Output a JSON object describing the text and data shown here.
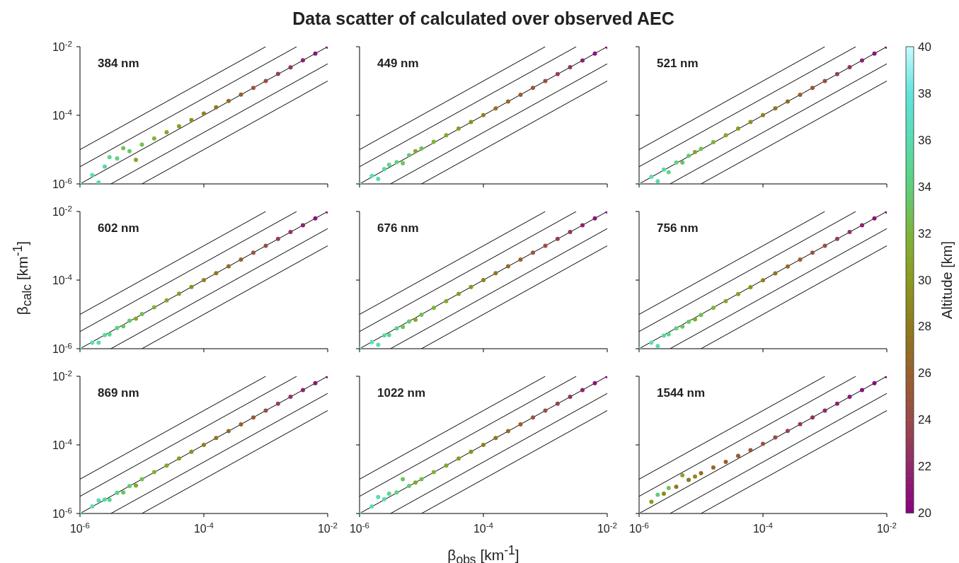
{
  "chart_data": [
    {
      "type": "scatter",
      "log": "xy",
      "annotations": [
        "384 nm"
      ],
      "xlim": [
        1e-06,
        0.01
      ],
      "ylim": [
        1e-06,
        0.01
      ],
      "xticks": [
        {
          "value": 1e-06,
          "label": null
        },
        {
          "value": 0.0001,
          "label": null
        },
        {
          "value": 0.01,
          "label": null
        }
      ],
      "yticks": [
        {
          "value": 1e-06,
          "label": "10$^{-6}$"
        },
        {
          "value": 0.0001,
          "label": "10$^{-4}$"
        },
        {
          "value": 0.01,
          "label": "10$^{-2}$"
        }
      ],
      "tick_labels": "y",
      "x": [
        1e-06,
        1.58e-06,
        2e-06,
        2.51e-06,
        3e-06,
        3.98e-06,
        5e-06,
        6.31e-06,
        8e-06,
        1e-05,
        1.58e-05,
        2.51e-05,
        3.98e-05,
        6.31e-05,
        0.0001,
        0.000158,
        0.000251,
        0.000398,
        0.000631,
        0.001,
        0.00158,
        0.00251,
        0.00398,
        0.00631,
        0.01
      ],
      "series": [
        {
          "type": "scatter",
          "values": [
            1e-06,
            1.8e-06,
            1.1e-06,
            3.2e-06,
            6e-06,
            5.5e-06,
            1.1e-05,
            9e-06,
            5e-06,
            1.4e-05,
            2.1e-05,
            3.2e-05,
            4.8e-05,
            7.3e-05,
            0.000112,
            0.00017,
            0.00026,
            0.0004,
            0.00063,
            0.001,
            0.0016,
            0.0025,
            0.004,
            0.0063,
            0.01
          ],
          "colors": [
            "#5ce0c6",
            "#59ddb4",
            "#58dcb0",
            "#5ad89d",
            "#5cd695",
            "#5dd288",
            "#6fc25a",
            "#65ca6d",
            "#85a72c",
            "#72bf54",
            "#7fb339",
            "#84a82d",
            "#8b9d21",
            "#8d901b",
            "#8e821d",
            "#91761f",
            "#946a27",
            "#98602e",
            "#99563c",
            "#9a4d44",
            "#964052",
            "#923460",
            "#8d246e",
            "#8c1376",
            "#8a0080"
          ]
        },
        {
          "type": "line",
          "color": "#000000",
          "x": [
            1e-06,
            0.001
          ],
          "values": [
            1e-05,
            0.01
          ]
        },
        {
          "type": "line",
          "color": "#000000",
          "x": [
            1e-06,
            0.00316
          ],
          "values": [
            3.16e-06,
            0.01
          ]
        },
        {
          "type": "line",
          "color": "#000000",
          "x": [
            1e-06,
            0.01
          ],
          "values": [
            1e-06,
            0.01
          ]
        },
        {
          "type": "line",
          "color": "#000000",
          "x": [
            3.16e-06,
            0.01
          ],
          "values": [
            1e-06,
            0.00316
          ]
        },
        {
          "type": "line",
          "color": "#000000",
          "x": [
            1e-05,
            0.01
          ],
          "values": [
            1e-06,
            0.001
          ]
        }
      ]
    },
    {
      "type": "scatter",
      "log": "xy",
      "title": "Data scatter of calculated over observed AEC",
      "annotations": [
        "449 nm"
      ],
      "xlim": [
        1e-06,
        0.01
      ],
      "ylim": [
        1e-06,
        0.01
      ],
      "xticks": [
        {
          "value": 1e-06,
          "label": null
        },
        {
          "value": 0.0001,
          "label": null
        },
        {
          "value": 0.01,
          "label": null
        }
      ],
      "yticks": [
        {
          "value": 1e-06,
          "label": null
        },
        {
          "value": 0.0001,
          "label": null
        },
        {
          "value": 0.01,
          "label": null
        }
      ],
      "tick_labels": false,
      "x": [
        1e-06,
        1.58e-06,
        2e-06,
        2.51e-06,
        3e-06,
        3.98e-06,
        5e-06,
        6.31e-06,
        8e-06,
        1e-05,
        1.58e-05,
        2.51e-05,
        3.98e-05,
        6.31e-05,
        0.0001,
        0.000158,
        0.000251,
        0.000398,
        0.000631,
        0.001,
        0.00158,
        0.00251,
        0.00398,
        0.00631,
        0.01
      ],
      "series": [
        {
          "type": "scatter",
          "values": [
            1e-06,
            1.7e-06,
            1.4e-06,
            2.7e-06,
            3.6e-06,
            4.3e-06,
            4e-06,
            6.8e-06,
            9e-06,
            1.07e-05,
            1.68e-05,
            2.6e-05,
            4.1e-05,
            6.4e-05,
            0.000101,
            0.000159,
            0.000252,
            0.000398,
            0.000631,
            0.001,
            0.00158,
            0.00251,
            0.00398,
            0.00631,
            0.01
          ],
          "colors": [
            "#5ce0c6",
            "#59ddb4",
            "#58dcb0",
            "#5ad89d",
            "#5cd695",
            "#5dd288",
            "#6fc25a",
            "#65ca6d",
            "#85a72c",
            "#72bf54",
            "#7fb339",
            "#84a82d",
            "#8b9d21",
            "#8d901b",
            "#8e821d",
            "#91761f",
            "#946a27",
            "#98602e",
            "#99563c",
            "#9a4d44",
            "#964052",
            "#923460",
            "#8d246e",
            "#8c1376",
            "#8a0080"
          ]
        },
        {
          "type": "line",
          "color": "#000000",
          "x": [
            1e-06,
            0.001
          ],
          "values": [
            1e-05,
            0.01
          ]
        },
        {
          "type": "line",
          "color": "#000000",
          "x": [
            1e-06,
            0.00316
          ],
          "values": [
            3.16e-06,
            0.01
          ]
        },
        {
          "type": "line",
          "color": "#000000",
          "x": [
            1e-06,
            0.01
          ],
          "values": [
            1e-06,
            0.01
          ]
        },
        {
          "type": "line",
          "color": "#000000",
          "x": [
            3.16e-06,
            0.01
          ],
          "values": [
            1e-06,
            0.00316
          ]
        },
        {
          "type": "line",
          "color": "#000000",
          "x": [
            1e-05,
            0.01
          ],
          "values": [
            1e-06,
            0.001
          ]
        }
      ]
    },
    {
      "type": "scatter",
      "log": "xy",
      "annotations": [
        "521 nm"
      ],
      "xlim": [
        1e-06,
        0.01
      ],
      "ylim": [
        1e-06,
        0.01
      ],
      "xticks": [
        {
          "value": 1e-06,
          "label": null
        },
        {
          "value": 0.0001,
          "label": null
        },
        {
          "value": 0.01,
          "label": null
        }
      ],
      "yticks": [
        {
          "value": 1e-06,
          "label": null
        },
        {
          "value": 0.0001,
          "label": null
        },
        {
          "value": 0.01,
          "label": null
        }
      ],
      "tick_labels": false,
      "x": [
        1e-06,
        1.58e-06,
        2e-06,
        2.51e-06,
        3e-06,
        3.98e-06,
        5e-06,
        6.31e-06,
        8e-06,
        1e-05,
        1.58e-05,
        2.51e-05,
        3.98e-05,
        6.31e-05,
        0.0001,
        0.000158,
        0.000251,
        0.000398,
        0.000631,
        0.001,
        0.00158,
        0.00251,
        0.00398,
        0.00631,
        0.01
      ],
      "series": [
        {
          "type": "scatter",
          "values": [
            1e-06,
            1.6e-06,
            1.2e-06,
            2.6e-06,
            2.2e-06,
            4.2e-06,
            4.2e-06,
            6.6e-06,
            8.5e-06,
            1.05e-05,
            1.65e-05,
            2.6e-05,
            4.1e-05,
            6.4e-05,
            0.000101,
            0.000158,
            0.000251,
            0.000398,
            0.000631,
            0.001,
            0.00158,
            0.00251,
            0.00398,
            0.00631,
            0.01
          ],
          "colors": [
            "#5ce0c6",
            "#59ddb4",
            "#58dcb0",
            "#5ad89d",
            "#5cd695",
            "#5dd288",
            "#6fc25a",
            "#65ca6d",
            "#85a72c",
            "#72bf54",
            "#7fb339",
            "#84a82d",
            "#8b9d21",
            "#8d901b",
            "#8e821d",
            "#91761f",
            "#946a27",
            "#98602e",
            "#99563c",
            "#9a4d44",
            "#964052",
            "#923460",
            "#8d246e",
            "#8c1376",
            "#8a0080"
          ]
        },
        {
          "type": "line",
          "color": "#000000",
          "x": [
            1e-06,
            0.001
          ],
          "values": [
            1e-05,
            0.01
          ]
        },
        {
          "type": "line",
          "color": "#000000",
          "x": [
            1e-06,
            0.00316
          ],
          "values": [
            3.16e-06,
            0.01
          ]
        },
        {
          "type": "line",
          "color": "#000000",
          "x": [
            1e-06,
            0.01
          ],
          "values": [
            1e-06,
            0.01
          ]
        },
        {
          "type": "line",
          "color": "#000000",
          "x": [
            3.16e-06,
            0.01
          ],
          "values": [
            1e-06,
            0.00316
          ]
        },
        {
          "type": "line",
          "color": "#000000",
          "x": [
            1e-05,
            0.01
          ],
          "values": [
            1e-06,
            0.001
          ]
        }
      ]
    },
    {
      "type": "scatter",
      "log": "xy",
      "ylabel": "β$_{calc}$ [km$^{-1}$]",
      "annotations": [
        "602 nm"
      ],
      "xlim": [
        1e-06,
        0.01
      ],
      "ylim": [
        1e-06,
        0.01
      ],
      "xticks": [
        {
          "value": 1e-06,
          "label": null
        },
        {
          "value": 0.0001,
          "label": null
        },
        {
          "value": 0.01,
          "label": null
        }
      ],
      "yticks": [
        {
          "value": 1e-06,
          "label": "10$^{-6}$"
        },
        {
          "value": 0.0001,
          "label": "10$^{-4}$"
        },
        {
          "value": 0.01,
          "label": "10$^{-2}$"
        }
      ],
      "tick_labels": "y",
      "x": [
        1e-06,
        1.58e-06,
        2e-06,
        2.51e-06,
        3e-06,
        3.98e-06,
        5e-06,
        6.31e-06,
        8e-06,
        1e-05,
        1.58e-05,
        2.51e-05,
        3.98e-05,
        6.31e-05,
        0.0001,
        0.000158,
        0.000251,
        0.000398,
        0.000631,
        0.001,
        0.00158,
        0.00251,
        0.00398,
        0.00631,
        0.01
      ],
      "series": [
        {
          "type": "scatter",
          "values": [
            1e-06,
            1.5e-06,
            1.5e-06,
            2.5e-06,
            2.6e-06,
            4e-06,
            4.5e-06,
            6.5e-06,
            7.5e-06,
            1.03e-05,
            1.6e-05,
            2.55e-05,
            4e-05,
            6.3e-05,
            0.0001,
            0.000158,
            0.000251,
            0.000398,
            0.000631,
            0.001,
            0.00158,
            0.00251,
            0.00398,
            0.00631,
            0.01
          ],
          "colors": [
            "#5ce0c6",
            "#59ddb4",
            "#58dcb0",
            "#5ad89d",
            "#5cd695",
            "#5dd288",
            "#6fc25a",
            "#65ca6d",
            "#85a72c",
            "#72bf54",
            "#7fb339",
            "#84a82d",
            "#8b9d21",
            "#8d901b",
            "#8e821d",
            "#91761f",
            "#946a27",
            "#98602e",
            "#99563c",
            "#9a4d44",
            "#964052",
            "#923460",
            "#8d246e",
            "#8c1376",
            "#8a0080"
          ]
        },
        {
          "type": "line",
          "color": "#000000",
          "x": [
            1e-06,
            0.001
          ],
          "values": [
            1e-05,
            0.01
          ]
        },
        {
          "type": "line",
          "color": "#000000",
          "x": [
            1e-06,
            0.00316
          ],
          "values": [
            3.16e-06,
            0.01
          ]
        },
        {
          "type": "line",
          "color": "#000000",
          "x": [
            1e-06,
            0.01
          ],
          "values": [
            1e-06,
            0.01
          ]
        },
        {
          "type": "line",
          "color": "#000000",
          "x": [
            3.16e-06,
            0.01
          ],
          "values": [
            1e-06,
            0.00316
          ]
        },
        {
          "type": "line",
          "color": "#000000",
          "x": [
            1e-05,
            0.01
          ],
          "values": [
            1e-06,
            0.001
          ]
        }
      ]
    },
    {
      "type": "scatter",
      "log": "xy",
      "annotations": [
        "676 nm"
      ],
      "xlim": [
        1e-06,
        0.01
      ],
      "ylim": [
        1e-06,
        0.01
      ],
      "xticks": [
        {
          "value": 1e-06,
          "label": null
        },
        {
          "value": 0.0001,
          "label": null
        },
        {
          "value": 0.01,
          "label": null
        }
      ],
      "yticks": [
        {
          "value": 1e-06,
          "label": null
        },
        {
          "value": 0.0001,
          "label": null
        },
        {
          "value": 0.01,
          "label": null
        }
      ],
      "tick_labels": false,
      "x": [
        1e-06,
        1.58e-06,
        2e-06,
        2.51e-06,
        3e-06,
        3.98e-06,
        5e-06,
        6.31e-06,
        8e-06,
        1e-05,
        1.58e-05,
        2.51e-05,
        3.98e-05,
        6.31e-05,
        0.0001,
        0.000158,
        0.000251,
        0.000398,
        0.000631,
        0.001,
        0.00158,
        0.00251,
        0.00398,
        0.00631,
        0.01
      ],
      "series": [
        {
          "type": "scatter",
          "values": [
            1e-06,
            1.55e-06,
            1.3e-06,
            2.45e-06,
            2.5e-06,
            3.9e-06,
            4.3e-06,
            6.2e-06,
            7e-06,
            9.8e-06,
            1.55e-05,
            2.45e-05,
            3.95e-05,
            6.3e-05,
            0.0001,
            0.000158,
            0.000251,
            0.000398,
            0.000631,
            0.001,
            0.00158,
            0.00251,
            0.00398,
            0.00631,
            0.01
          ],
          "colors": [
            "#5ce0c6",
            "#59ddb4",
            "#58dcb0",
            "#5ad89d",
            "#5cd695",
            "#5dd288",
            "#6fc25a",
            "#65ca6d",
            "#85a72c",
            "#72bf54",
            "#7fb339",
            "#84a82d",
            "#8b9d21",
            "#8d901b",
            "#8e821d",
            "#91761f",
            "#946a27",
            "#98602e",
            "#99563c",
            "#9a4d44",
            "#964052",
            "#923460",
            "#8d246e",
            "#8c1376",
            "#8a0080"
          ]
        },
        {
          "type": "line",
          "color": "#000000",
          "x": [
            1e-06,
            0.001
          ],
          "values": [
            1e-05,
            0.01
          ]
        },
        {
          "type": "line",
          "color": "#000000",
          "x": [
            1e-06,
            0.00316
          ],
          "values": [
            3.16e-06,
            0.01
          ]
        },
        {
          "type": "line",
          "color": "#000000",
          "x": [
            1e-06,
            0.01
          ],
          "values": [
            1e-06,
            0.01
          ]
        },
        {
          "type": "line",
          "color": "#000000",
          "x": [
            3.16e-06,
            0.01
          ],
          "values": [
            1e-06,
            0.00316
          ]
        },
        {
          "type": "line",
          "color": "#000000",
          "x": [
            1e-05,
            0.01
          ],
          "values": [
            1e-06,
            0.001
          ]
        }
      ]
    },
    {
      "type": "scatter",
      "log": "xy",
      "clabel": "Altitude [km]",
      "clim": [
        20,
        40
      ],
      "cticks": [
        20,
        22,
        24,
        26,
        28,
        30,
        32,
        34,
        36,
        38,
        40
      ],
      "annotations": [
        "756 nm"
      ],
      "xlim": [
        1e-06,
        0.01
      ],
      "ylim": [
        1e-06,
        0.01
      ],
      "xticks": [
        {
          "value": 1e-06,
          "label": null
        },
        {
          "value": 0.0001,
          "label": null
        },
        {
          "value": 0.01,
          "label": null
        }
      ],
      "yticks": [
        {
          "value": 1e-06,
          "label": null
        },
        {
          "value": 0.0001,
          "label": null
        },
        {
          "value": 0.01,
          "label": null
        }
      ],
      "tick_labels": false,
      "x": [
        1e-06,
        1.58e-06,
        2e-06,
        2.51e-06,
        3e-06,
        3.98e-06,
        5e-06,
        6.31e-06,
        8e-06,
        1e-05,
        1.58e-05,
        2.51e-05,
        3.98e-05,
        6.31e-05,
        0.0001,
        0.000158,
        0.000251,
        0.000398,
        0.000631,
        0.001,
        0.00158,
        0.00251,
        0.00398,
        0.00631,
        0.01
      ],
      "series": [
        {
          "type": "scatter",
          "values": [
            1e-06,
            1.5e-06,
            1.2e-06,
            2.4e-06,
            2.6e-06,
            3.9e-06,
            4.4e-06,
            6.1e-06,
            7.2e-06,
            9.7e-06,
            1.55e-05,
            2.45e-05,
            3.9e-05,
            6.2e-05,
            9.9e-05,
            0.000157,
            0.00025,
            0.000397,
            0.00063,
            0.001,
            0.00158,
            0.00251,
            0.00398,
            0.00631,
            0.01
          ],
          "colors": [
            "#5ce0c6",
            "#59ddb4",
            "#58dcb0",
            "#5ad89d",
            "#5cd695",
            "#5dd288",
            "#6fc25a",
            "#65ca6d",
            "#85a72c",
            "#72bf54",
            "#7fb339",
            "#84a82d",
            "#8b9d21",
            "#8d901b",
            "#8e821d",
            "#91761f",
            "#946a27",
            "#98602e",
            "#99563c",
            "#9a4d44",
            "#964052",
            "#923460",
            "#8d246e",
            "#8c1376",
            "#8a0080"
          ]
        },
        {
          "type": "line",
          "color": "#000000",
          "x": [
            1e-06,
            0.001
          ],
          "values": [
            1e-05,
            0.01
          ]
        },
        {
          "type": "line",
          "color": "#000000",
          "x": [
            1e-06,
            0.00316
          ],
          "values": [
            3.16e-06,
            0.01
          ]
        },
        {
          "type": "line",
          "color": "#000000",
          "x": [
            1e-06,
            0.01
          ],
          "values": [
            1e-06,
            0.01
          ]
        },
        {
          "type": "line",
          "color": "#000000",
          "x": [
            3.16e-06,
            0.01
          ],
          "values": [
            1e-06,
            0.00316
          ]
        },
        {
          "type": "line",
          "color": "#000000",
          "x": [
            1e-05,
            0.01
          ],
          "values": [
            1e-06,
            0.001
          ]
        }
      ]
    },
    {
      "type": "scatter",
      "log": "xy",
      "annotations": [
        "869 nm"
      ],
      "xlim": [
        1e-06,
        0.01
      ],
      "ylim": [
        1e-06,
        0.01
      ],
      "xticks": [
        {
          "value": 1e-06,
          "label": "10$^{-6}$"
        },
        {
          "value": 0.0001,
          "label": "10$^{-4}$"
        },
        {
          "value": 0.01,
          "label": "10$^{-2}$"
        }
      ],
      "yticks": [
        {
          "value": 1e-06,
          "label": "10$^{-6}$"
        },
        {
          "value": 0.0001,
          "label": "10$^{-4}$"
        },
        {
          "value": 0.01,
          "label": "10$^{-2}$"
        }
      ],
      "x": [
        1e-06,
        1.58e-06,
        2e-06,
        2.51e-06,
        3e-06,
        3.98e-06,
        5e-06,
        6.31e-06,
        8e-06,
        1e-05,
        1.58e-05,
        2.51e-05,
        3.98e-05,
        6.31e-05,
        0.0001,
        0.000158,
        0.000251,
        0.000398,
        0.000631,
        0.001,
        0.00158,
        0.00251,
        0.00398,
        0.00631,
        0.01
      ],
      "series": [
        {
          "type": "scatter",
          "values": [
            1e-06,
            1.6e-06,
            2.4e-06,
            2.55e-06,
            2.5e-06,
            4e-06,
            4.1e-06,
            6.3e-06,
            6.5e-06,
            1e-05,
            1.6e-05,
            2.5e-05,
            4e-05,
            6.3e-05,
            0.0001,
            0.000158,
            0.000251,
            0.000398,
            0.000631,
            0.001,
            0.00158,
            0.00251,
            0.00398,
            0.00631,
            0.01
          ],
          "colors": [
            "#5ce0c6",
            "#59ddb4",
            "#58dcb0",
            "#5ad89d",
            "#5cd695",
            "#5dd288",
            "#6fc25a",
            "#65ca6d",
            "#85a72c",
            "#72bf54",
            "#7fb339",
            "#84a82d",
            "#8b9d21",
            "#8d901b",
            "#8e821d",
            "#91761f",
            "#946a27",
            "#98602e",
            "#99563c",
            "#9a4d44",
            "#964052",
            "#923460",
            "#8d246e",
            "#8c1376",
            "#8a0080"
          ]
        },
        {
          "type": "line",
          "color": "#000000",
          "x": [
            1e-06,
            0.001
          ],
          "values": [
            1e-05,
            0.01
          ]
        },
        {
          "type": "line",
          "color": "#000000",
          "x": [
            1e-06,
            0.00316
          ],
          "values": [
            3.16e-06,
            0.01
          ]
        },
        {
          "type": "line",
          "color": "#000000",
          "x": [
            1e-06,
            0.01
          ],
          "values": [
            1e-06,
            0.01
          ]
        },
        {
          "type": "line",
          "color": "#000000",
          "x": [
            3.16e-06,
            0.01
          ],
          "values": [
            1e-06,
            0.00316
          ]
        },
        {
          "type": "line",
          "color": "#000000",
          "x": [
            1e-05,
            0.01
          ],
          "values": [
            1e-06,
            0.001
          ]
        }
      ]
    },
    {
      "type": "scatter",
      "log": "xy",
      "xlabel": "β$_{obs}$ [km$^{-1}$]",
      "annotations": [
        "1022 nm"
      ],
      "xlim": [
        1e-06,
        0.01
      ],
      "ylim": [
        1e-06,
        0.01
      ],
      "xticks": [
        {
          "value": 1e-06,
          "label": "10$^{-6}$"
        },
        {
          "value": 0.0001,
          "label": "10$^{-4}$"
        },
        {
          "value": 0.01,
          "label": "10$^{-2}$"
        }
      ],
      "yticks": [
        {
          "value": 1e-06,
          "label": null
        },
        {
          "value": 0.0001,
          "label": null
        },
        {
          "value": 0.01,
          "label": null
        }
      ],
      "tick_labels": "x",
      "x": [
        1e-06,
        1.58e-06,
        2e-06,
        2.51e-06,
        3e-06,
        3.98e-06,
        5e-06,
        6.31e-06,
        8e-06,
        1e-05,
        1.58e-05,
        2.51e-05,
        3.98e-05,
        6.31e-05,
        0.0001,
        0.000158,
        0.000251,
        0.000398,
        0.000631,
        0.001,
        0.00158,
        0.00251,
        0.00398,
        0.00631,
        0.01
      ],
      "series": [
        {
          "type": "scatter",
          "values": [
            1e-06,
            1.6e-06,
            3e-06,
            2.6e-06,
            3.8e-06,
            4.1e-06,
            1e-05,
            6.4e-06,
            8e-06,
            1e-05,
            1.6e-05,
            2.5e-05,
            4e-05,
            6.3e-05,
            0.0001,
            0.000158,
            0.000251,
            0.000398,
            0.000631,
            0.001,
            0.00158,
            0.00251,
            0.00398,
            0.00631,
            0.01
          ],
          "colors": [
            "#5ce0c6",
            "#59ddb4",
            "#58dcb0",
            "#5ad89d",
            "#5cd695",
            "#5dd288",
            "#6fc25a",
            "#65ca6d",
            "#85a72c",
            "#72bf54",
            "#7fb339",
            "#84a82d",
            "#8b9d21",
            "#8d901b",
            "#8e821d",
            "#91761f",
            "#946a27",
            "#98602e",
            "#99563c",
            "#9a4d44",
            "#964052",
            "#923460",
            "#8d246e",
            "#8c1376",
            "#8a0080"
          ]
        },
        {
          "type": "line",
          "color": "#000000",
          "x": [
            1e-06,
            0.001
          ],
          "values": [
            1e-05,
            0.01
          ]
        },
        {
          "type": "line",
          "color": "#000000",
          "x": [
            1e-06,
            0.00316
          ],
          "values": [
            3.16e-06,
            0.01
          ]
        },
        {
          "type": "line",
          "color": "#000000",
          "x": [
            1e-06,
            0.01
          ],
          "values": [
            1e-06,
            0.01
          ]
        },
        {
          "type": "line",
          "color": "#000000",
          "x": [
            3.16e-06,
            0.01
          ],
          "values": [
            1e-06,
            0.00316
          ]
        },
        {
          "type": "line",
          "color": "#000000",
          "x": [
            1e-05,
            0.01
          ],
          "values": [
            1e-06,
            0.001
          ]
        }
      ]
    },
    {
      "type": "scatter",
      "log": "xy",
      "annotations": [
        "1544 nm"
      ],
      "xlim": [
        1e-06,
        0.01
      ],
      "ylim": [
        1e-06,
        0.01
      ],
      "xticks": [
        {
          "value": 1e-06,
          "label": "10$^{-6}$"
        },
        {
          "value": 0.0001,
          "label": "10$^{-4}$"
        },
        {
          "value": 0.01,
          "label": "10$^{-2}$"
        }
      ],
      "yticks": [
        {
          "value": 1e-06,
          "label": null
        },
        {
          "value": 0.0001,
          "label": null
        },
        {
          "value": 0.01,
          "label": null
        }
      ],
      "tick_labels": "x",
      "x": [
        1e-06,
        1.58e-06,
        2e-06,
        2.51e-06,
        3e-06,
        3.98e-06,
        5e-06,
        6.31e-06,
        8e-06,
        1e-05,
        1.58e-05,
        2.51e-05,
        3.98e-05,
        6.31e-05,
        0.0001,
        0.000158,
        0.000251,
        0.000398,
        0.000631,
        0.001,
        0.00158,
        0.00251,
        0.00398,
        0.00631,
        0.01
      ],
      "series": [
        {
          "type": "scatter",
          "values": [
            1e-06,
            2.2e-06,
            3.5e-06,
            3.8e-06,
            5.5e-06,
            6e-06,
            1.3e-05,
            9.5e-06,
            1.2e-05,
            1.5e-05,
            2.2e-05,
            3.2e-05,
            4.8e-05,
            7e-05,
            0.000108,
            0.000165,
            0.000255,
            0.0004,
            0.000631,
            0.001,
            0.00158,
            0.00251,
            0.00398,
            0.00631,
            0.01
          ],
          "colors": [
            "#85a72c",
            "#8c9a1e",
            "#5fcf7a",
            "#8e8a1d",
            "#6fc25a",
            "#8f7a1c",
            "#85a72c",
            "#917421",
            "#8e8a1d",
            "#936d25",
            "#96662a",
            "#98602e",
            "#995a35",
            "#99553b",
            "#9a5042",
            "#9a4a48",
            "#974251",
            "#943a59",
            "#913262",
            "#8e2a6a",
            "#8d226e",
            "#8c1973",
            "#8c1177",
            "#8b087c",
            "#8a0080"
          ]
        },
        {
          "type": "line",
          "color": "#000000",
          "x": [
            1e-06,
            0.001
          ],
          "values": [
            1e-05,
            0.01
          ]
        },
        {
          "type": "line",
          "color": "#000000",
          "x": [
            1e-06,
            0.00316
          ],
          "values": [
            3.16e-06,
            0.01
          ]
        },
        {
          "type": "line",
          "color": "#000000",
          "x": [
            1e-06,
            0.01
          ],
          "values": [
            1e-06,
            0.01
          ]
        },
        {
          "type": "line",
          "color": "#000000",
          "x": [
            3.16e-06,
            0.01
          ],
          "values": [
            1e-06,
            0.00316
          ]
        },
        {
          "type": "line",
          "color": "#000000",
          "x": [
            1e-05,
            0.01
          ],
          "values": [
            1e-06,
            0.001
          ]
        }
      ]
    }
  ]
}
